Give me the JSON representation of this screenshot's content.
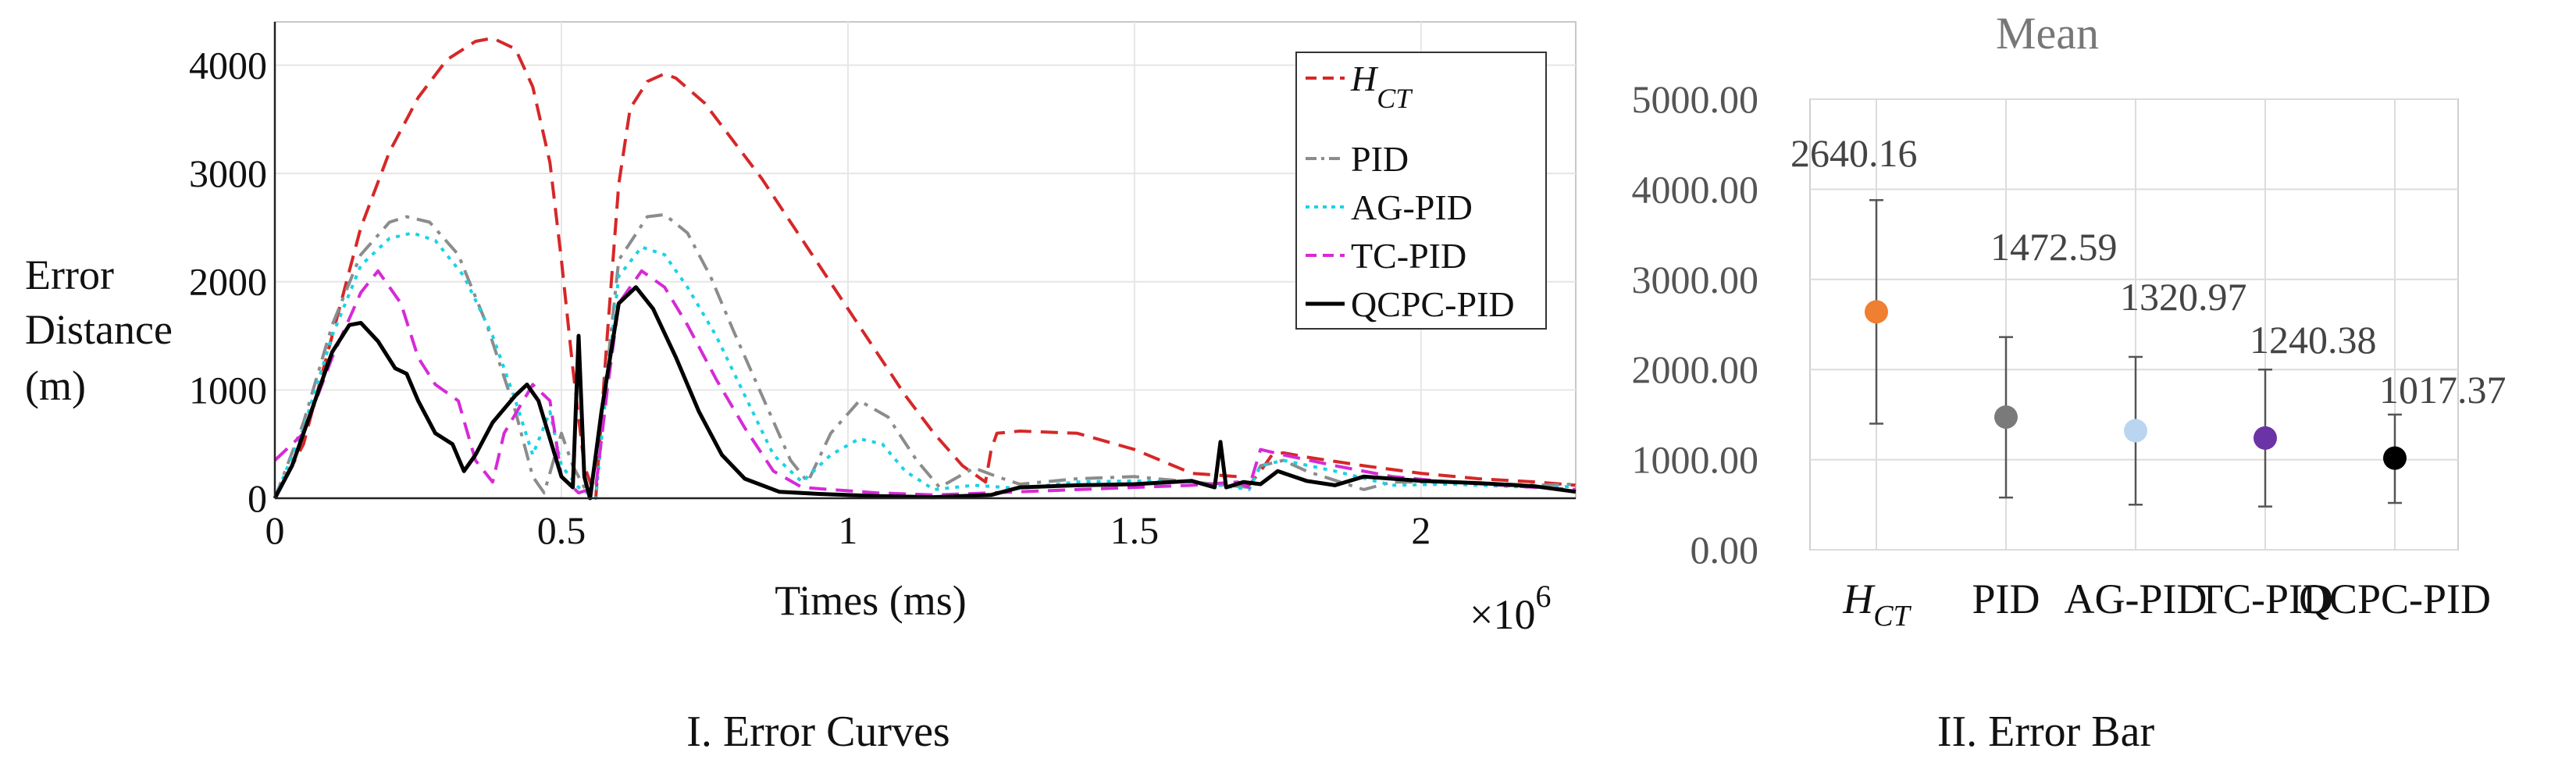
{
  "chart_data": [
    {
      "type": "line",
      "caption": "I. Error Curves",
      "xlabel": "Times (ms)",
      "x_multiplier": "×10",
      "x_multiplier_exp": "6",
      "ylabel_lines": [
        "Error",
        "Distance",
        "(m)"
      ],
      "xlim": [
        0,
        2.27
      ],
      "ylim": [
        0,
        4400
      ],
      "xticks": [
        0,
        0.5,
        1,
        1.5,
        2
      ],
      "xtick_labels": [
        "0",
        "0.5",
        "1",
        "1.5",
        "2"
      ],
      "yticks": [
        0,
        1000,
        2000,
        3000,
        4000
      ],
      "ytick_labels": [
        "0",
        "1000",
        "2000",
        "3000",
        "4000"
      ],
      "grid": true,
      "legend_position": "top-right",
      "series": [
        {
          "name": "H_CT",
          "label_main": "H",
          "label_sub": "CT",
          "color": "#d62728",
          "dash": "dashed",
          "points": [
            [
              0,
              0
            ],
            [
              0.05,
              500
            ],
            [
              0.1,
              1500
            ],
            [
              0.15,
              2500
            ],
            [
              0.2,
              3200
            ],
            [
              0.25,
              3700
            ],
            [
              0.3,
              4050
            ],
            [
              0.35,
              4220
            ],
            [
              0.38,
              4250
            ],
            [
              0.42,
              4150
            ],
            [
              0.45,
              3800
            ],
            [
              0.48,
              3100
            ],
            [
              0.5,
              2200
            ],
            [
              0.52,
              1200
            ],
            [
              0.54,
              300
            ],
            [
              0.56,
              0
            ],
            [
              0.58,
              1500
            ],
            [
              0.6,
              2900
            ],
            [
              0.62,
              3600
            ],
            [
              0.65,
              3850
            ],
            [
              0.68,
              3920
            ],
            [
              0.7,
              3880
            ],
            [
              0.75,
              3650
            ],
            [
              0.8,
              3300
            ],
            [
              0.85,
              2950
            ],
            [
              0.9,
              2550
            ],
            [
              0.95,
              2150
            ],
            [
              1.0,
              1750
            ],
            [
              1.05,
              1350
            ],
            [
              1.1,
              950
            ],
            [
              1.15,
              600
            ],
            [
              1.2,
              300
            ],
            [
              1.24,
              150
            ],
            [
              1.25,
              450
            ],
            [
              1.26,
              600
            ],
            [
              1.3,
              620
            ],
            [
              1.4,
              600
            ],
            [
              1.5,
              450
            ],
            [
              1.6,
              230
            ],
            [
              1.68,
              200
            ],
            [
              1.7,
              120
            ],
            [
              1.72,
              250
            ],
            [
              1.74,
              400
            ],
            [
              1.76,
              420
            ],
            [
              1.8,
              380
            ],
            [
              1.9,
              300
            ],
            [
              2.0,
              230
            ],
            [
              2.1,
              180
            ],
            [
              2.2,
              150
            ],
            [
              2.27,
              120
            ]
          ]
        },
        {
          "name": "PID",
          "label_main": "PID",
          "label_sub": "",
          "color": "#8c8c8c",
          "dash": "dashdot",
          "points": [
            [
              0,
              0
            ],
            [
              0.05,
              700
            ],
            [
              0.1,
              1600
            ],
            [
              0.15,
              2250
            ],
            [
              0.2,
              2550
            ],
            [
              0.23,
              2600
            ],
            [
              0.27,
              2550
            ],
            [
              0.32,
              2250
            ],
            [
              0.37,
              1600
            ],
            [
              0.42,
              800
            ],
            [
              0.45,
              200
            ],
            [
              0.47,
              50
            ],
            [
              0.5,
              600
            ],
            [
              0.52,
              300
            ],
            [
              0.55,
              0
            ],
            [
              0.58,
              1200
            ],
            [
              0.6,
              2200
            ],
            [
              0.65,
              2600
            ],
            [
              0.68,
              2620
            ],
            [
              0.72,
              2450
            ],
            [
              0.76,
              2050
            ],
            [
              0.8,
              1550
            ],
            [
              0.85,
              950
            ],
            [
              0.9,
              350
            ],
            [
              0.93,
              150
            ],
            [
              0.97,
              600
            ],
            [
              1.02,
              900
            ],
            [
              1.07,
              750
            ],
            [
              1.12,
              350
            ],
            [
              1.16,
              100
            ],
            [
              1.22,
              280
            ],
            [
              1.26,
              200
            ],
            [
              1.3,
              130
            ],
            [
              1.4,
              180
            ],
            [
              1.5,
              200
            ],
            [
              1.6,
              150
            ],
            [
              1.7,
              100
            ],
            [
              1.72,
              300
            ],
            [
              1.76,
              350
            ],
            [
              1.8,
              250
            ],
            [
              1.9,
              80
            ],
            [
              1.95,
              150
            ],
            [
              2.05,
              150
            ],
            [
              2.2,
              120
            ],
            [
              2.27,
              130
            ]
          ]
        },
        {
          "name": "AG-PID",
          "label_main": "AG-PID",
          "label_sub": "",
          "color": "#19d3e6",
          "dash": "dotted",
          "points": [
            [
              0,
              0
            ],
            [
              0.05,
              650
            ],
            [
              0.1,
              1500
            ],
            [
              0.15,
              2150
            ],
            [
              0.2,
              2400
            ],
            [
              0.24,
              2450
            ],
            [
              0.28,
              2380
            ],
            [
              0.33,
              2050
            ],
            [
              0.38,
              1500
            ],
            [
              0.42,
              900
            ],
            [
              0.45,
              400
            ],
            [
              0.48,
              800
            ],
            [
              0.5,
              300
            ],
            [
              0.53,
              100
            ],
            [
              0.56,
              0
            ],
            [
              0.58,
              1100
            ],
            [
              0.6,
              2050
            ],
            [
              0.64,
              2320
            ],
            [
              0.68,
              2250
            ],
            [
              0.72,
              1950
            ],
            [
              0.77,
              1500
            ],
            [
              0.82,
              950
            ],
            [
              0.87,
              400
            ],
            [
              0.92,
              150
            ],
            [
              0.97,
              400
            ],
            [
              1.02,
              550
            ],
            [
              1.06,
              500
            ],
            [
              1.1,
              250
            ],
            [
              1.15,
              80
            ],
            [
              1.22,
              120
            ],
            [
              1.3,
              90
            ],
            [
              1.4,
              150
            ],
            [
              1.5,
              160
            ],
            [
              1.6,
              150
            ],
            [
              1.65,
              120
            ],
            [
              1.7,
              80
            ],
            [
              1.72,
              300
            ],
            [
              1.76,
              350
            ],
            [
              1.85,
              250
            ],
            [
              1.95,
              120
            ],
            [
              2.05,
              130
            ],
            [
              2.2,
              100
            ],
            [
              2.27,
              110
            ]
          ]
        },
        {
          "name": "TC-PID",
          "label_main": "TC-PID",
          "label_sub": "",
          "color": "#d62ad6",
          "dash": "dashed",
          "points": [
            [
              0,
              350
            ],
            [
              0.05,
              600
            ],
            [
              0.1,
              1300
            ],
            [
              0.15,
              1900
            ],
            [
              0.18,
              2100
            ],
            [
              0.22,
              1800
            ],
            [
              0.25,
              1300
            ],
            [
              0.28,
              1050
            ],
            [
              0.32,
              900
            ],
            [
              0.35,
              350
            ],
            [
              0.38,
              150
            ],
            [
              0.4,
              600
            ],
            [
              0.45,
              1050
            ],
            [
              0.48,
              900
            ],
            [
              0.5,
              200
            ],
            [
              0.53,
              50
            ],
            [
              0.56,
              100
            ],
            [
              0.58,
              1000
            ],
            [
              0.6,
              1800
            ],
            [
              0.64,
              2100
            ],
            [
              0.68,
              1950
            ],
            [
              0.72,
              1600
            ],
            [
              0.77,
              1100
            ],
            [
              0.82,
              650
            ],
            [
              0.87,
              250
            ],
            [
              0.92,
              100
            ],
            [
              0.97,
              80
            ],
            [
              1.05,
              50
            ],
            [
              1.15,
              30
            ],
            [
              1.2,
              40
            ],
            [
              1.3,
              60
            ],
            [
              1.4,
              80
            ],
            [
              1.5,
              100
            ],
            [
              1.6,
              120
            ],
            [
              1.68,
              150
            ],
            [
              1.7,
              100
            ],
            [
              1.72,
              450
            ],
            [
              1.76,
              400
            ],
            [
              1.85,
              300
            ],
            [
              1.95,
              200
            ],
            [
              2.05,
              150
            ],
            [
              2.2,
              100
            ],
            [
              2.27,
              80
            ]
          ]
        },
        {
          "name": "QCPC-PID",
          "label_main": "QCPC-PID",
          "label_sub": "",
          "color": "#000000",
          "dash": "solid",
          "points": [
            [
              0,
              0
            ],
            [
              0.03,
              300
            ],
            [
              0.07,
              900
            ],
            [
              0.1,
              1350
            ],
            [
              0.13,
              1600
            ],
            [
              0.15,
              1620
            ],
            [
              0.18,
              1450
            ],
            [
              0.21,
              1200
            ],
            [
              0.23,
              1150
            ],
            [
              0.25,
              900
            ],
            [
              0.28,
              600
            ],
            [
              0.31,
              500
            ],
            [
              0.33,
              250
            ],
            [
              0.35,
              400
            ],
            [
              0.38,
              700
            ],
            [
              0.42,
              950
            ],
            [
              0.44,
              1050
            ],
            [
              0.46,
              900
            ],
            [
              0.5,
              200
            ],
            [
              0.52,
              100
            ],
            [
              0.53,
              1500
            ],
            [
              0.54,
              200
            ],
            [
              0.55,
              0
            ],
            [
              0.57,
              800
            ],
            [
              0.6,
              1800
            ],
            [
              0.63,
              1950
            ],
            [
              0.66,
              1750
            ],
            [
              0.7,
              1300
            ],
            [
              0.74,
              800
            ],
            [
              0.78,
              400
            ],
            [
              0.82,
              180
            ],
            [
              0.88,
              60
            ],
            [
              0.95,
              40
            ],
            [
              1.05,
              20
            ],
            [
              1.15,
              10
            ],
            [
              1.25,
              30
            ],
            [
              1.3,
              100
            ],
            [
              1.4,
              120
            ],
            [
              1.5,
              130
            ],
            [
              1.6,
              160
            ],
            [
              1.64,
              100
            ],
            [
              1.65,
              520
            ],
            [
              1.66,
              100
            ],
            [
              1.69,
              150
            ],
            [
              1.72,
              130
            ],
            [
              1.75,
              250
            ],
            [
              1.8,
              160
            ],
            [
              1.85,
              120
            ],
            [
              1.9,
              200
            ],
            [
              2.0,
              160
            ],
            [
              2.1,
              140
            ],
            [
              2.2,
              110
            ],
            [
              2.27,
              60
            ]
          ]
        }
      ]
    },
    {
      "type": "errorbar",
      "caption": "II. Error Bar",
      "title": "Mean",
      "ylim": [
        0,
        5000
      ],
      "yticks": [
        0,
        1000,
        2000,
        3000,
        4000,
        5000
      ],
      "ytick_labels": [
        "0.00",
        "1000.00",
        "2000.00",
        "3000.00",
        "4000.00",
        "5000.00"
      ],
      "grid": true,
      "categories": [
        {
          "label_main": "H",
          "label_sub": "CT",
          "mean": 2640.16,
          "mean_label": "2640.16",
          "low": 1400,
          "high": 3880,
          "color": "#ef7f31"
        },
        {
          "label_main": "PID",
          "label_sub": "",
          "mean": 1472.59,
          "mean_label": "1472.59",
          "low": 580,
          "high": 2360,
          "color": "#7a7a7a"
        },
        {
          "label_main": "AG-PID",
          "label_sub": "",
          "mean": 1320.97,
          "mean_label": "1320.97",
          "low": 500,
          "high": 2140,
          "color": "#b9d5f0"
        },
        {
          "label_main": "TC-PID",
          "label_sub": "",
          "mean": 1240.38,
          "mean_label": "1240.38",
          "low": 480,
          "high": 2000,
          "color": "#6b33a6"
        },
        {
          "label_main": "QCPC-PID",
          "label_sub": "",
          "mean": 1017.37,
          "mean_label": "1017.37",
          "low": 520,
          "high": 1500,
          "color": "#000000"
        }
      ]
    }
  ]
}
